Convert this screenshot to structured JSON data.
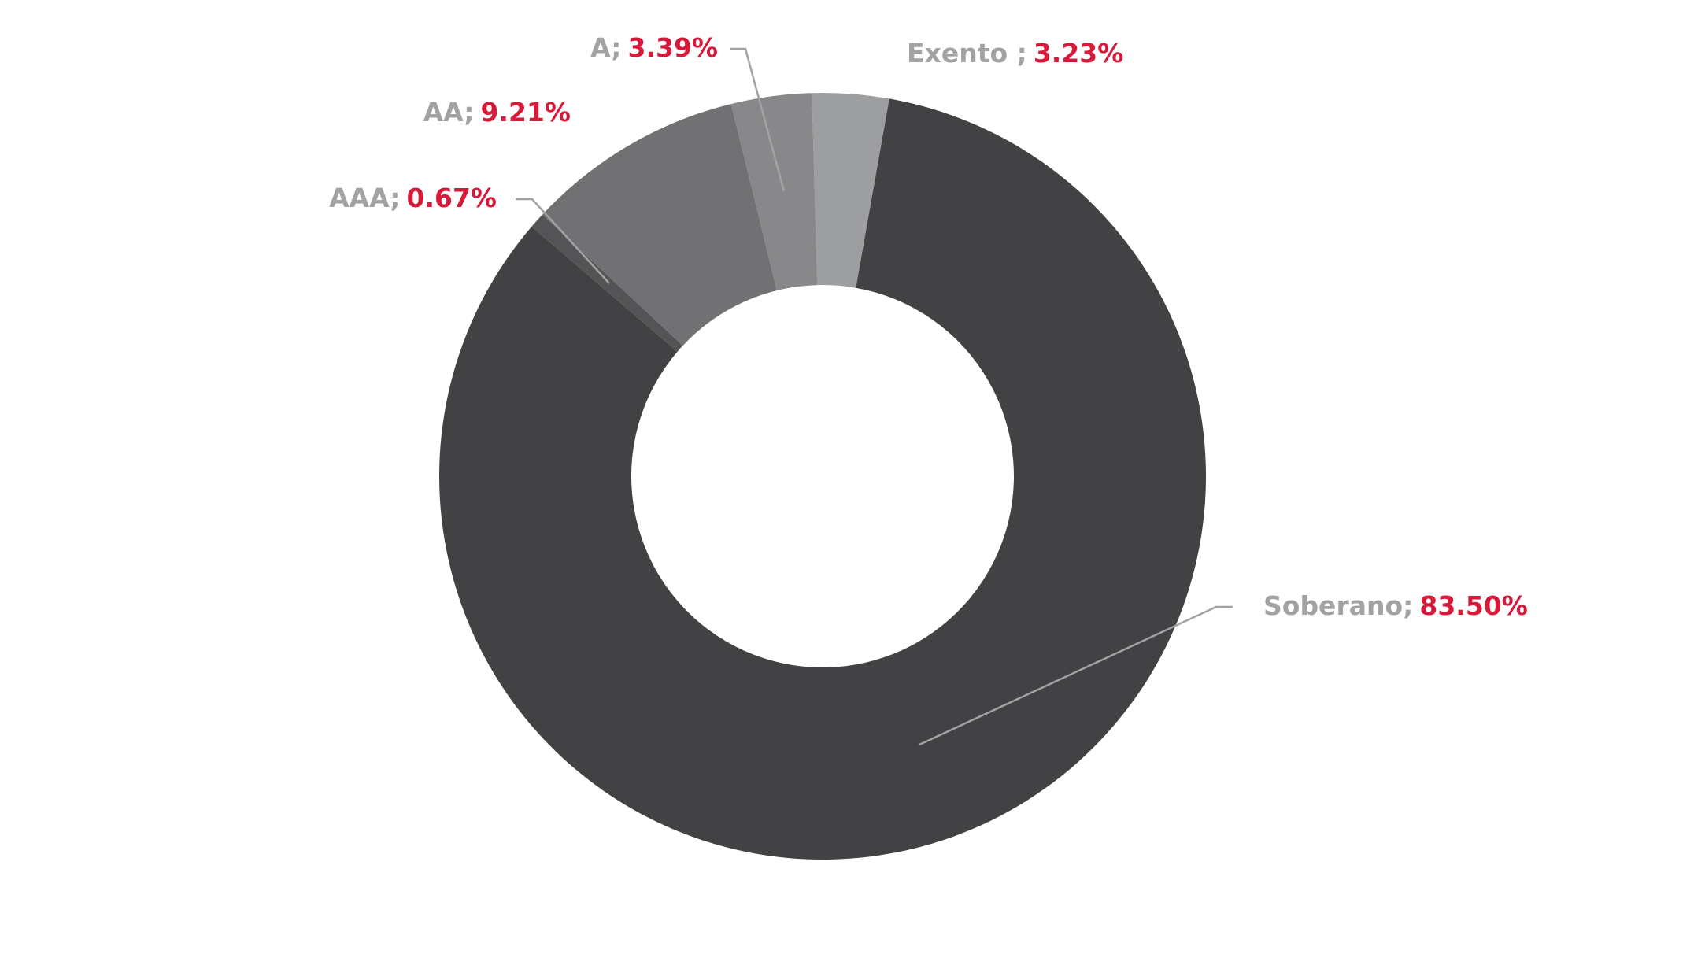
{
  "chart_data": {
    "type": "donut",
    "categories": [
      "Exento ;",
      "Soberano;",
      "AAA;",
      "AA;",
      "A;"
    ],
    "values": [
      3.23,
      83.5,
      0.67,
      9.21,
      3.39
    ],
    "value_labels": [
      "3.23%",
      "83.50%",
      "0.67%",
      "9.21%",
      "3.39%"
    ],
    "colors": [
      "#9d9ea0",
      "#424244",
      "#545456",
      "#717174",
      "#88888a"
    ]
  }
}
